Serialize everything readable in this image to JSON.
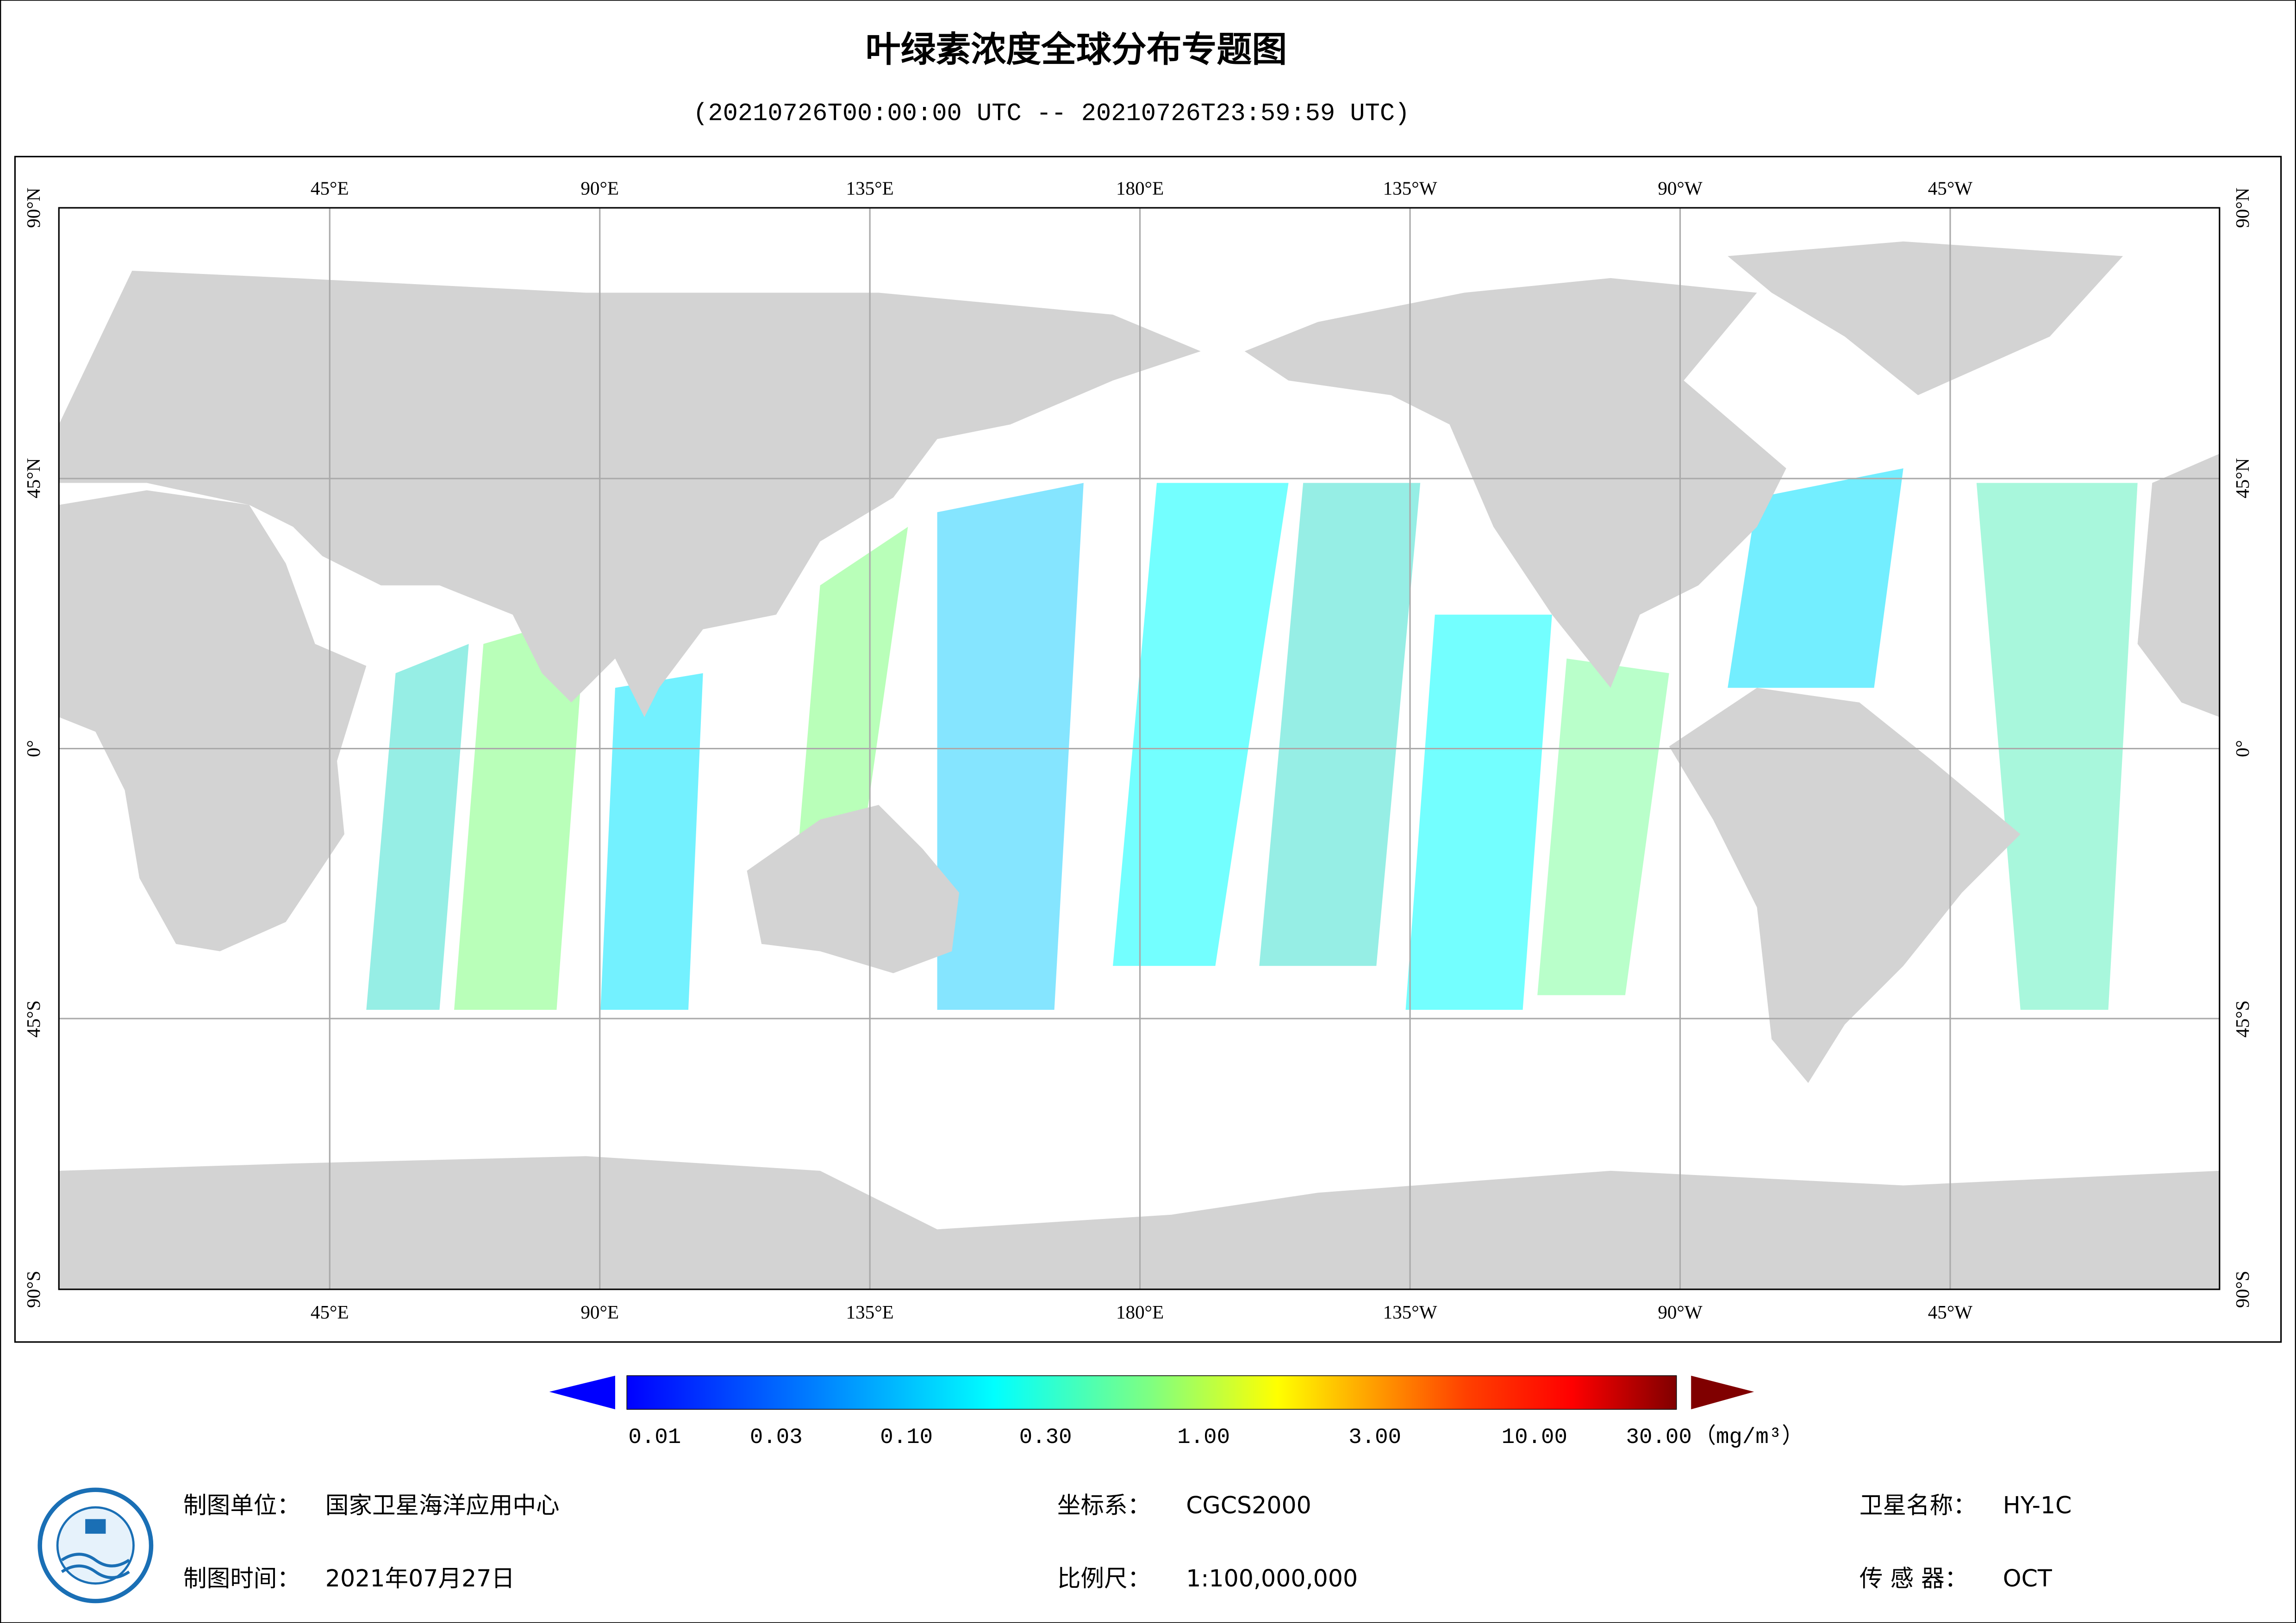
{
  "title": "叶绿素浓度全球分布专题图",
  "subtitle": "(20210726T00:00:00 UTC -- 20210726T23:59:59 UTC)",
  "map": {
    "lon_labels": [
      "45°E",
      "90°E",
      "135°E",
      "180°E",
      "135°W",
      "90°W",
      "45°W"
    ],
    "lat_labels": [
      "90°N",
      "45°N",
      "0°",
      "45°S",
      "90°S"
    ]
  },
  "colorbar": {
    "ticks": [
      "0.01",
      "0.03",
      "0.10",
      "0.30",
      "1.00",
      "3.00",
      "10.00",
      "30.00"
    ],
    "unit": "（mg/m³）"
  },
  "footer": {
    "producer_label": "制图单位：",
    "producer": "国家卫星海洋应用中心",
    "date_label": "制图时间：",
    "date": "2021年07月27日",
    "crs_label": "坐标系：",
    "crs": "CGCS2000",
    "scale_label": "比例尺：",
    "scale": "1:100,000,000",
    "satellite_label": "卫星名称：",
    "satellite": "HY-1C",
    "sensor_label": "传 感 器：",
    "sensor": "OCT"
  }
}
